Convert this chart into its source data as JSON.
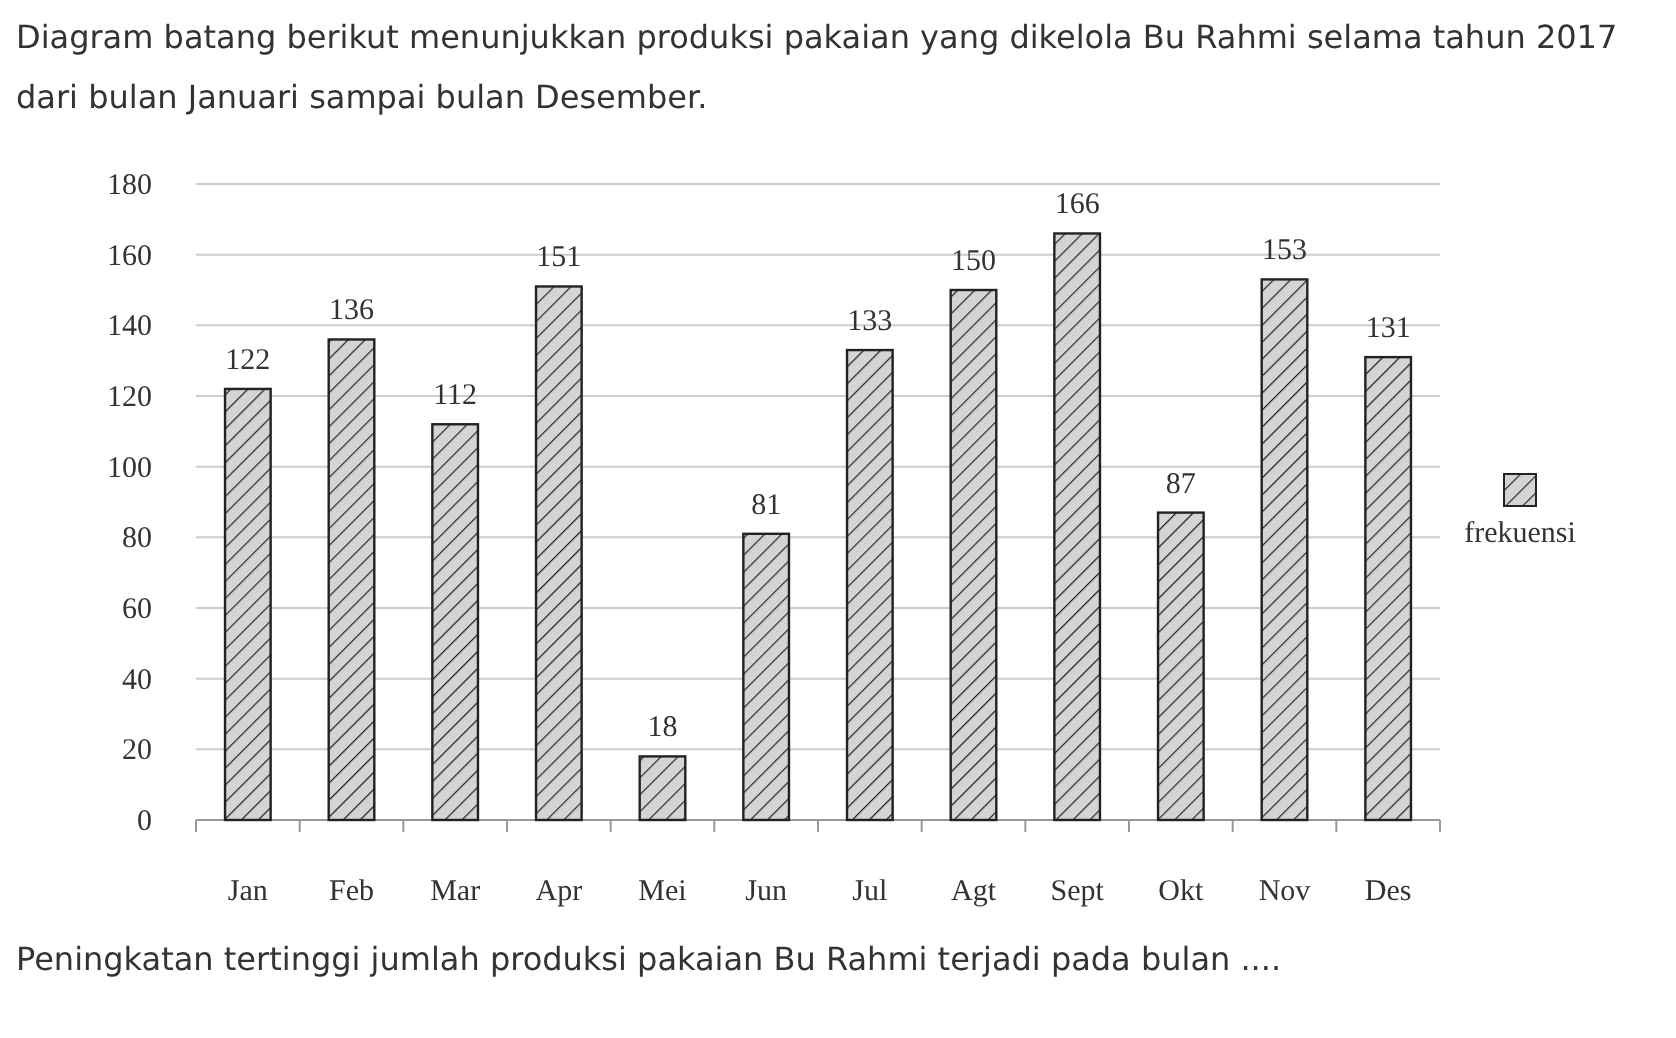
{
  "chart_data": {
    "type": "bar",
    "title": "Diagram batang berikut menunjukkan produksi pakaian yang dikelola Bu Rahmi selama tahun 2017 dari bulan Januari sampai bulan Desember.",
    "categories": [
      "Jan",
      "Feb",
      "Mar",
      "Apr",
      "Mei",
      "Jun",
      "Jul",
      "Agt",
      "Sept",
      "Okt",
      "Nov",
      "Des"
    ],
    "series": [
      {
        "name": "frekuensi",
        "color": "#d4d4d4",
        "values": [
          122,
          136,
          112,
          151,
          18,
          81,
          133,
          150,
          166,
          87,
          153,
          131
        ]
      }
    ],
    "ylim": [
      0,
      180
    ],
    "yticks": [
      0,
      20,
      40,
      60,
      80,
      100,
      120,
      140,
      160,
      180
    ],
    "grid": "y",
    "legend": "right",
    "data_labels": true,
    "annotations": [
      "Peningkatan tertinggi jumlah produksi pakaian Bu Rahmi terjadi pada bulan ...."
    ]
  }
}
